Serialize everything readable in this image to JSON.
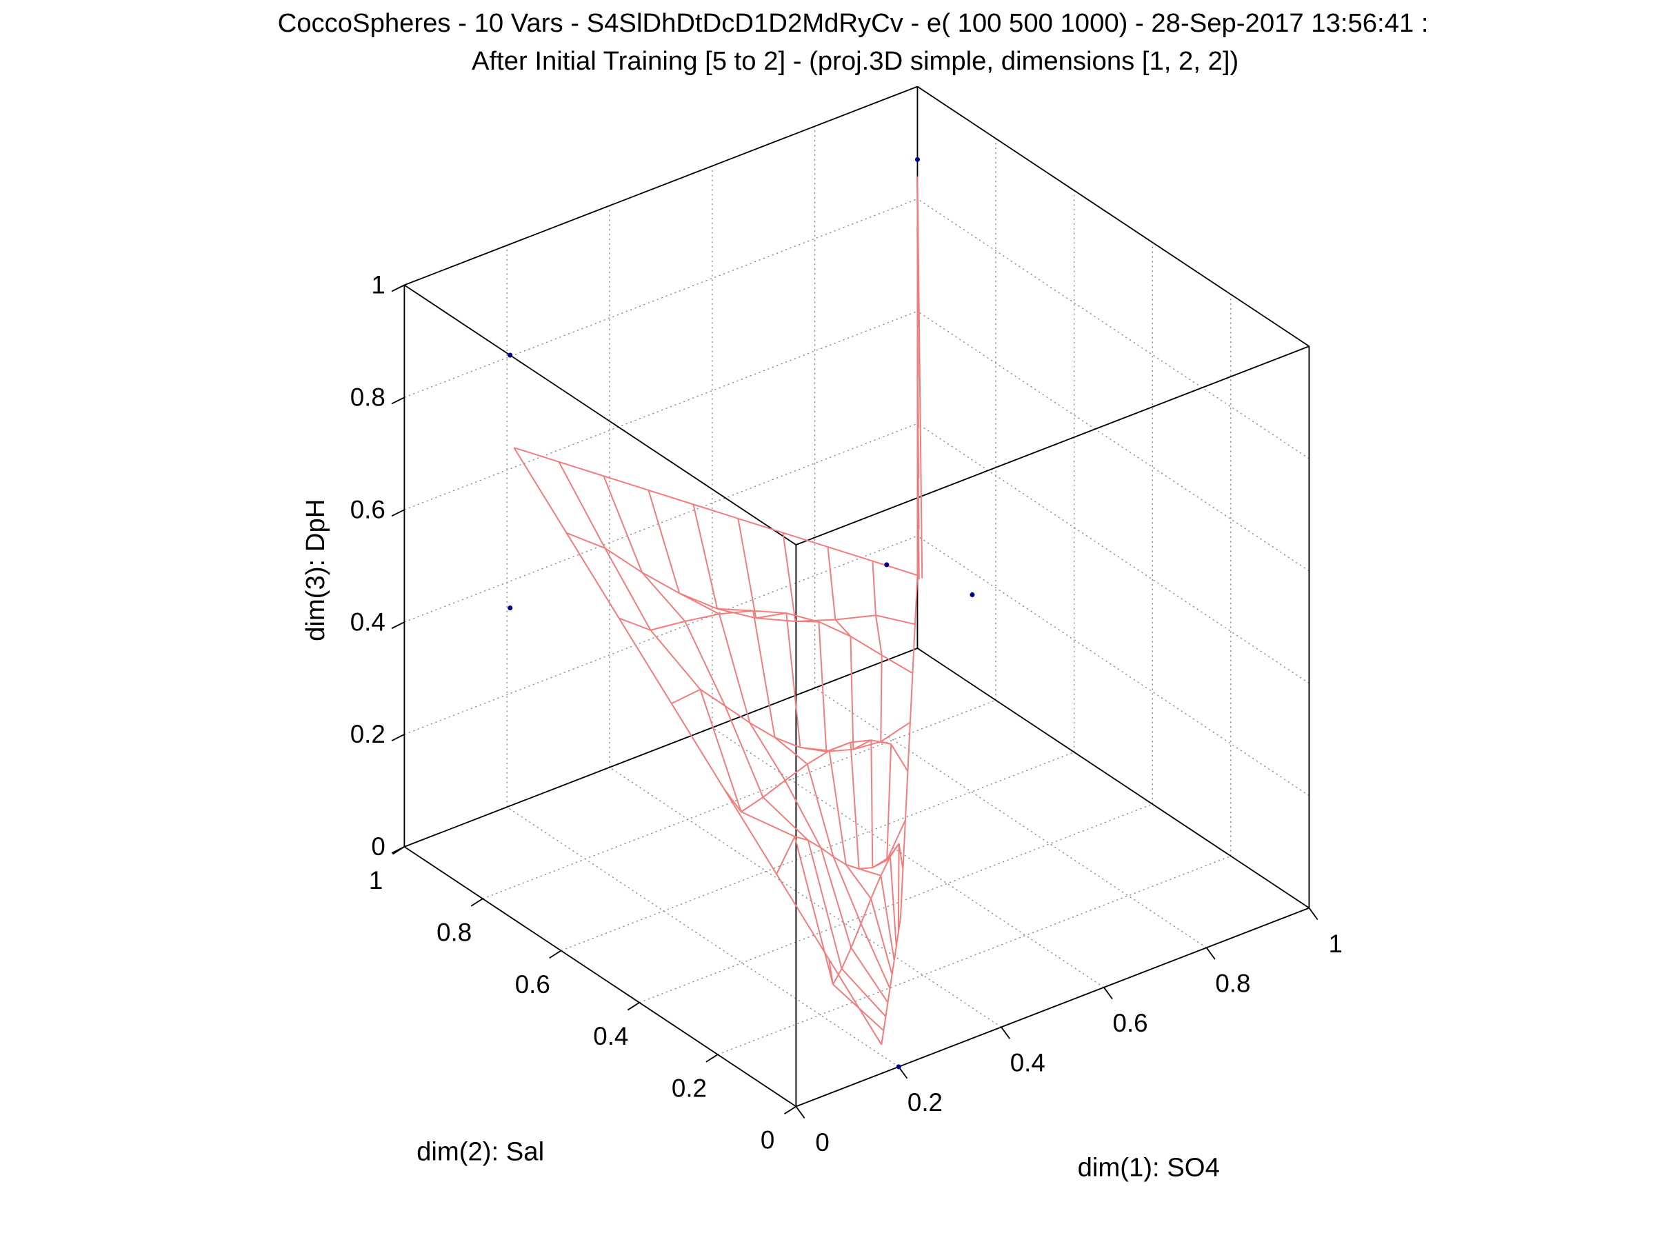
{
  "chart_data": {
    "type": "3d-wireframe",
    "title": [
      "CoccoSpheres - 10 Vars - S4SlDhDtDcD1D2MdRyCv - e( 100 500 1000) - 28-Sep-2017 13:56:41 :",
      "After Initial Training [5 to 2] - (proj.3D simple, dimensions [1, 2, 2])"
    ],
    "xlabel": "dim(1): SO4",
    "ylabel": "dim(2): Sal",
    "zlabel": "dim(3): DpH",
    "xlim": [
      0,
      1
    ],
    "ylim": [
      0,
      1
    ],
    "zlim": [
      0,
      1
    ],
    "xticks": [
      "0",
      "0.2",
      "0.4",
      "0.6",
      "0.8",
      "1"
    ],
    "yticks": [
      "0",
      "0.2",
      "0.4",
      "0.6",
      "0.8",
      "1"
    ],
    "zticks": [
      "0",
      "0.2",
      "0.4",
      "0.6",
      "0.8",
      "1"
    ],
    "grid": true,
    "mesh_color": "#f27c7c",
    "point_color": "#00008b",
    "mesh": {
      "grid_size": [
        9,
        7
      ],
      "corners": {
        "top_left": [
          0.0,
          0.72,
          0.84
        ],
        "top_right": [
          1.0,
          1.0,
          0.13
        ],
        "bottom_right": [
          0.28,
          0.1,
          0.19
        ],
        "bottom_left": [
          0.22,
          0.07,
          0.0
        ]
      },
      "spike": {
        "from": [
          1.0,
          1.0,
          0.13
        ],
        "to": [
          1.0,
          1.0,
          0.84
        ],
        "rows": 8,
        "cols": 3
      }
    },
    "points": [
      [
        1.0,
        1.0,
        0.87
      ],
      [
        0.0,
        0.73,
        1.0
      ],
      [
        0.0,
        0.73,
        0.55
      ],
      [
        0.94,
        1.0,
        0.17
      ],
      [
        1.0,
        0.86,
        0.16
      ],
      [
        0.2,
        0.0,
        0.0
      ]
    ]
  }
}
